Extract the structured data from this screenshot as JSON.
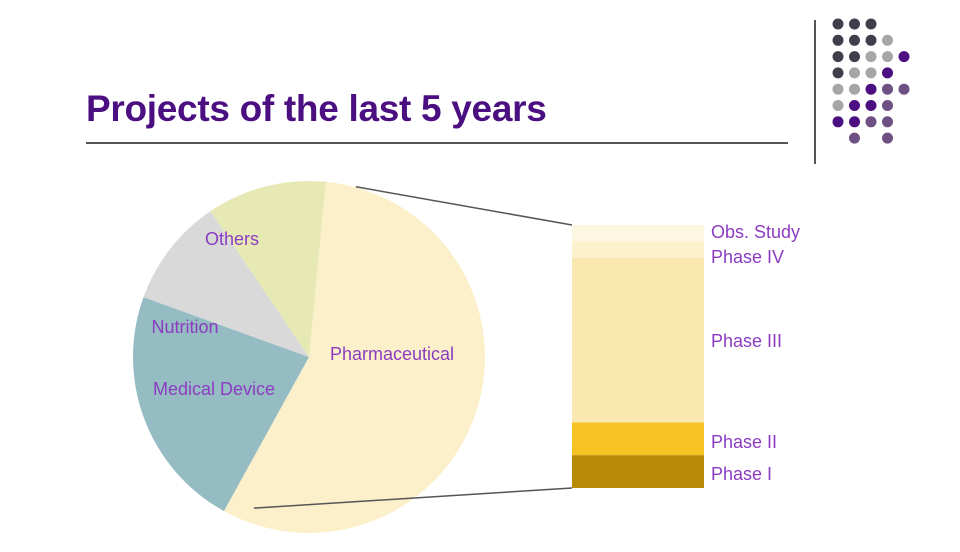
{
  "title": "Projects of the last 5 years",
  "colors": {
    "title": "#4b0f82",
    "label": "#8b3cc0",
    "connector": "#555555",
    "dot_dark": "#3f3f4b",
    "dot_gray": "#a6a6a6",
    "dot_purple": "#4b0f82",
    "dot_mauve": "#6e5082"
  },
  "decor_dots": [
    [
      "dark",
      "dark",
      "dark",
      null,
      null
    ],
    [
      "dark",
      "dark",
      "dark",
      "gray",
      null
    ],
    [
      "dark",
      "dark",
      "gray",
      "gray",
      "purple"
    ],
    [
      "dark",
      "gray",
      "gray",
      "purple",
      null
    ],
    [
      "gray",
      "gray",
      "purple",
      "mauve",
      "mauve"
    ],
    [
      "gray",
      "purple",
      "purple",
      "mauve",
      null
    ],
    [
      "purple",
      "purple",
      "mauve",
      "mauve",
      null
    ],
    [
      null,
      "mauve",
      null,
      "mauve",
      null
    ]
  ],
  "chart_data": [
    {
      "type": "pie",
      "slices": [
        {
          "label": "Pharmaceutical",
          "value": 56.5,
          "color": "#fcf0cb"
        },
        {
          "label": "Medical Device",
          "value": 22.5,
          "color": "#96bcc3"
        },
        {
          "label": "Nutrition",
          "value": 10,
          "color": "#d9d9d9"
        },
        {
          "label": "Others",
          "value": 11,
          "color": "#e6e9b4"
        }
      ]
    },
    {
      "type": "bar",
      "stacked": true,
      "parent": "Pharmaceutical",
      "segments": [
        {
          "label": "Phase I",
          "value": 10,
          "color": "#b68a06"
        },
        {
          "label": "Phase II",
          "value": 10,
          "color": "#f6c224"
        },
        {
          "label": "Phase III",
          "value": 50,
          "color": "#fbe8b1"
        },
        {
          "label": "Phase IV",
          "value": 5,
          "color": "#fdf0cd"
        },
        {
          "label": "Obs. Study",
          "value": 5,
          "color": "#fdf7e1"
        }
      ]
    }
  ]
}
